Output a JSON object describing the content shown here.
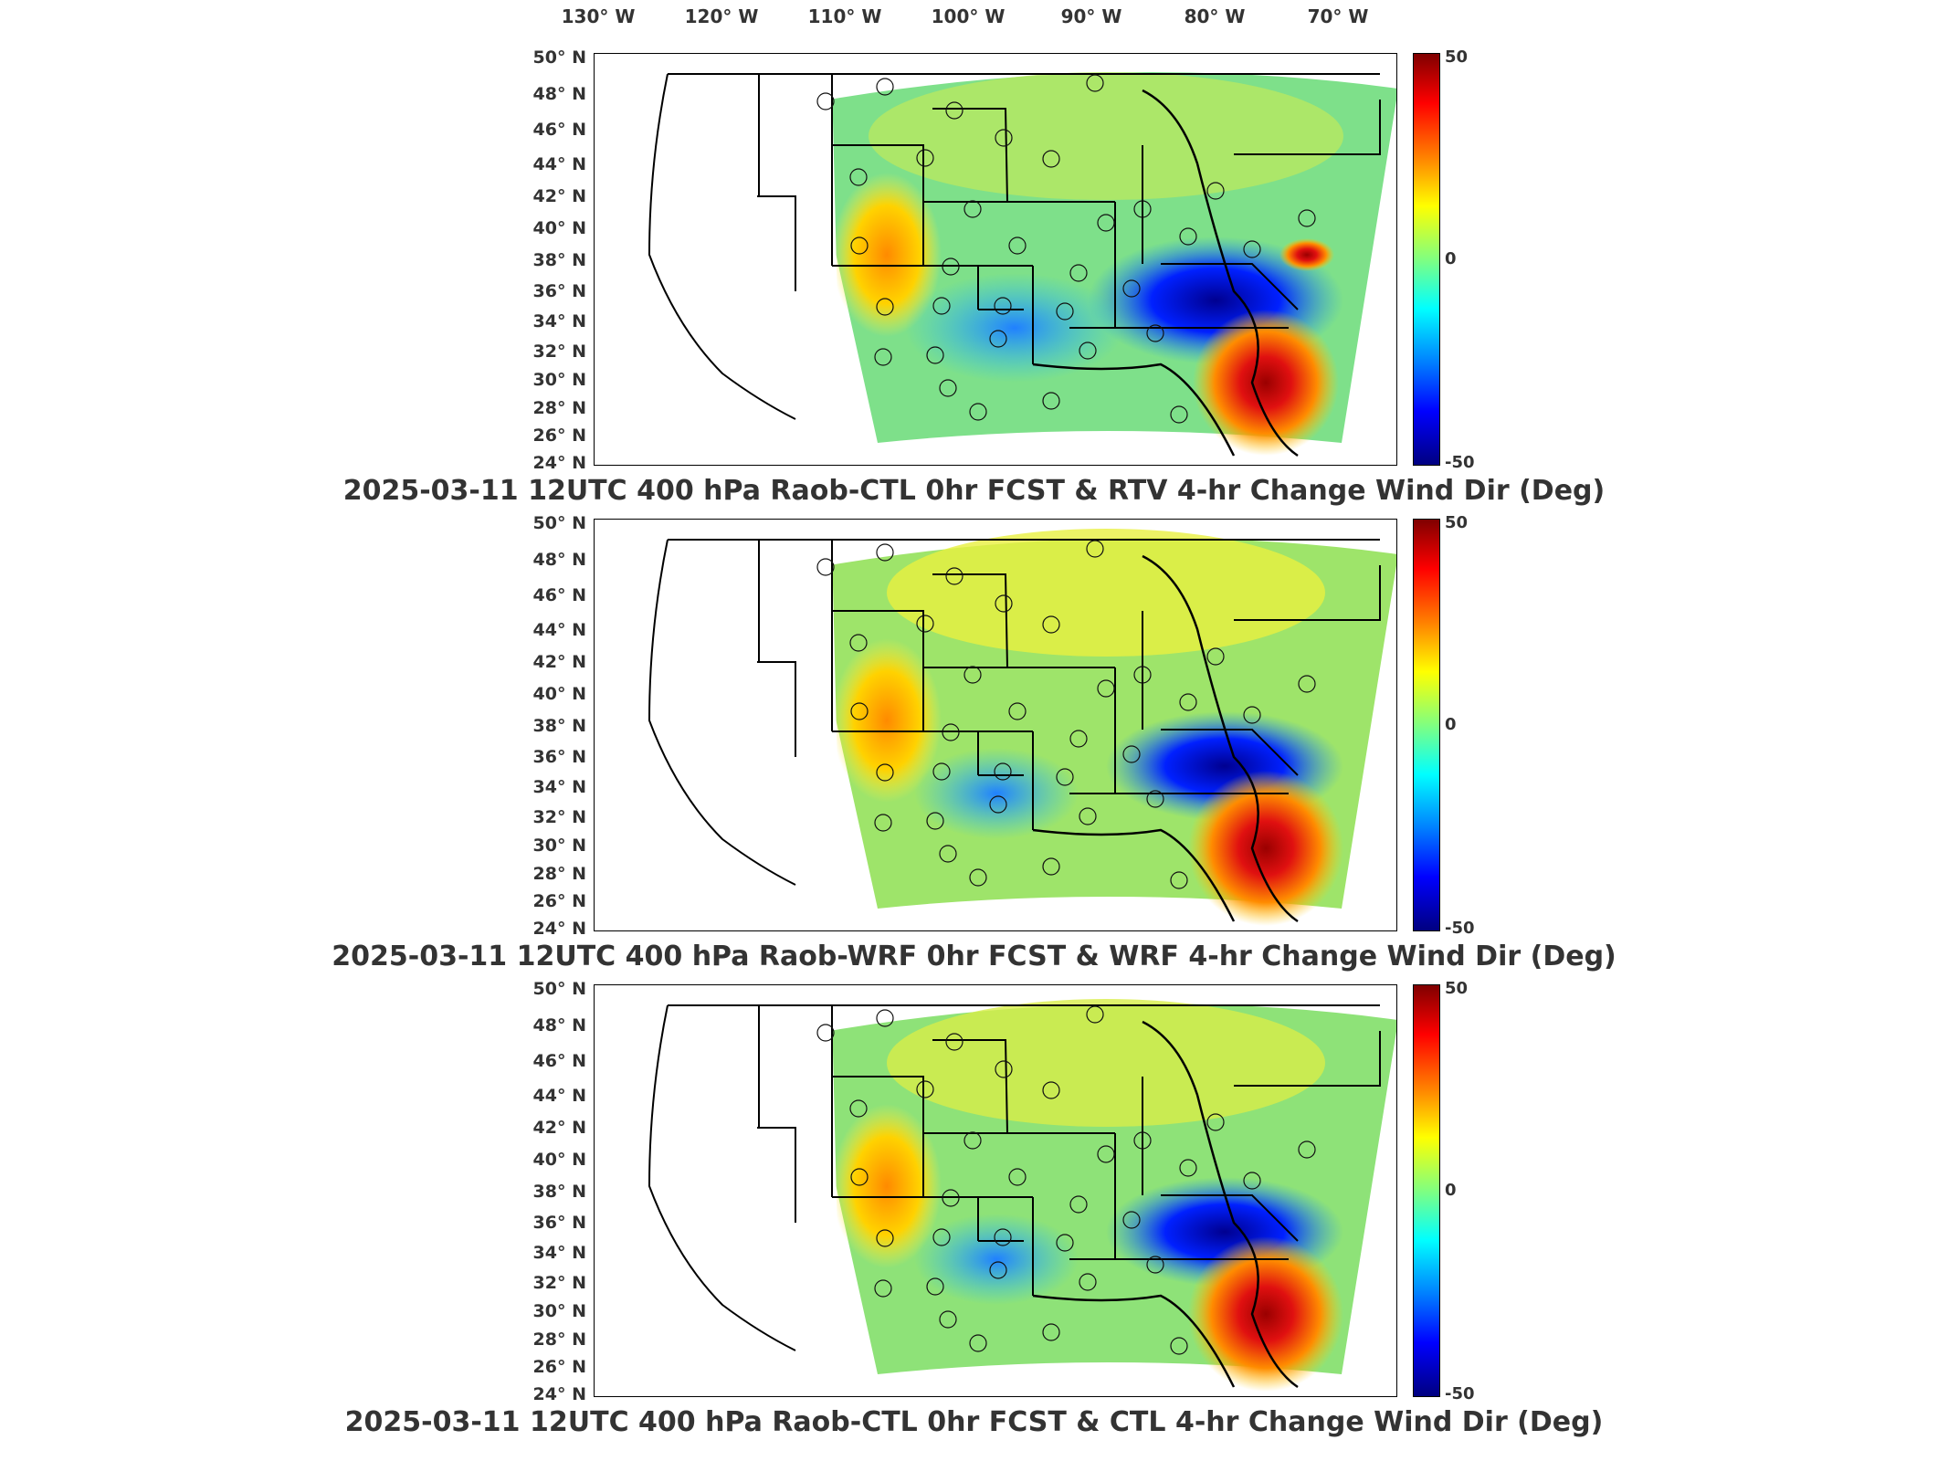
{
  "longitude_labels": [
    "130° W",
    "120° W",
    "110° W",
    "100° W",
    "90° W",
    "80° W",
    "70° W"
  ],
  "latitude_labels": [
    "50° N",
    "48° N",
    "46° N",
    "44° N",
    "42° N",
    "40° N",
    "38° N",
    "36° N",
    "34° N",
    "32° N",
    "30° N",
    "28° N",
    "26° N",
    "24° N"
  ],
  "colorbar": {
    "max_label": "50",
    "mid_label": "0",
    "min_label": "-50",
    "units": "Deg",
    "colors": [
      "#800000",
      "#ff0000",
      "#ff8000",
      "#ffff00",
      "#80ff80",
      "#00ffff",
      "#0080ff",
      "#0000ff",
      "#000080"
    ]
  },
  "panels": [
    {
      "title": "2025-03-11 12UTC 400 hPa Raob-CTL 0hr FCST & RTV 4-hr Change Wind Dir (Deg)"
    },
    {
      "title": "2025-03-11 12UTC 400 hPa Raob-WRF 0hr FCST & WRF 4-hr Change Wind Dir (Deg)"
    },
    {
      "title": "2025-03-11 12UTC 400 hPa Raob-CTL 0hr FCST & CTL 4-hr Change Wind Dir (Deg)"
    }
  ]
}
